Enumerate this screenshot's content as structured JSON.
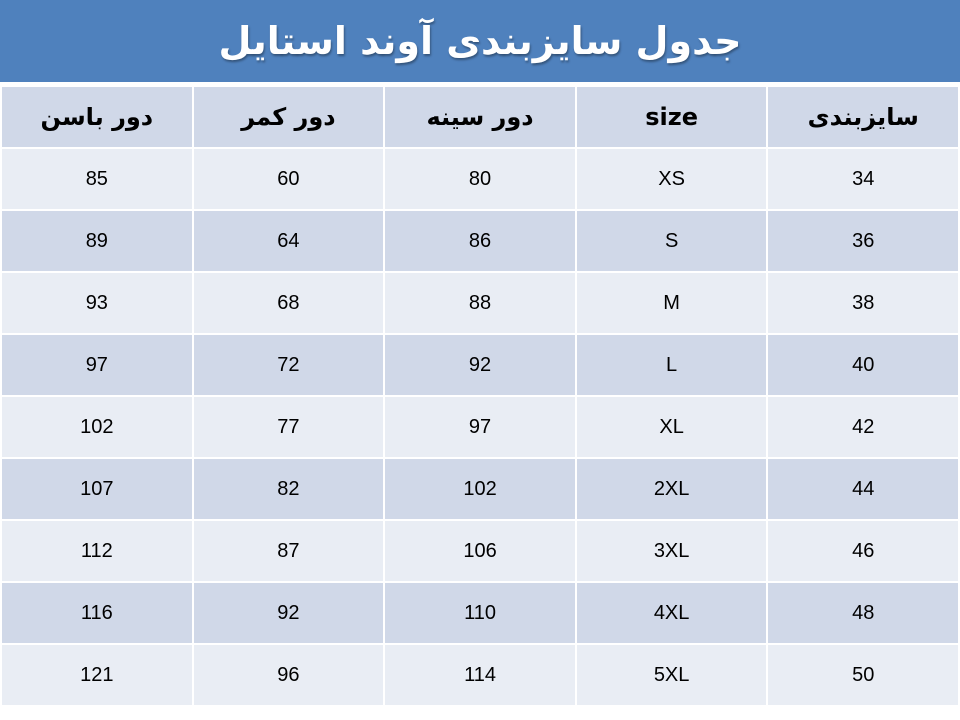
{
  "title": "جدول سایزبندی آوند استایل",
  "headers": [
    "سایزبندی",
    "size",
    "دور سینه",
    "دور کمر",
    "دور باسن"
  ],
  "rows": [
    [
      "34",
      "XS",
      "80",
      "60",
      "85"
    ],
    [
      "36",
      "S",
      "86",
      "64",
      "89"
    ],
    [
      "38",
      "M",
      "88",
      "68",
      "93"
    ],
    [
      "40",
      "L",
      "92",
      "72",
      "97"
    ],
    [
      "42",
      "XL",
      "97",
      "77",
      "102"
    ],
    [
      "44",
      "2XL",
      "102",
      "82",
      "107"
    ],
    [
      "46",
      "3XL",
      "106",
      "87",
      "112"
    ],
    [
      "48",
      "4XL",
      "110",
      "92",
      "116"
    ],
    [
      "50",
      "5XL",
      "114",
      "96",
      "121"
    ]
  ],
  "colors": {
    "title_bg": "#4f81bd",
    "header_bg": "#d0d8e8",
    "row_light": "#e9edf4",
    "row_dark": "#d0d8e8"
  }
}
